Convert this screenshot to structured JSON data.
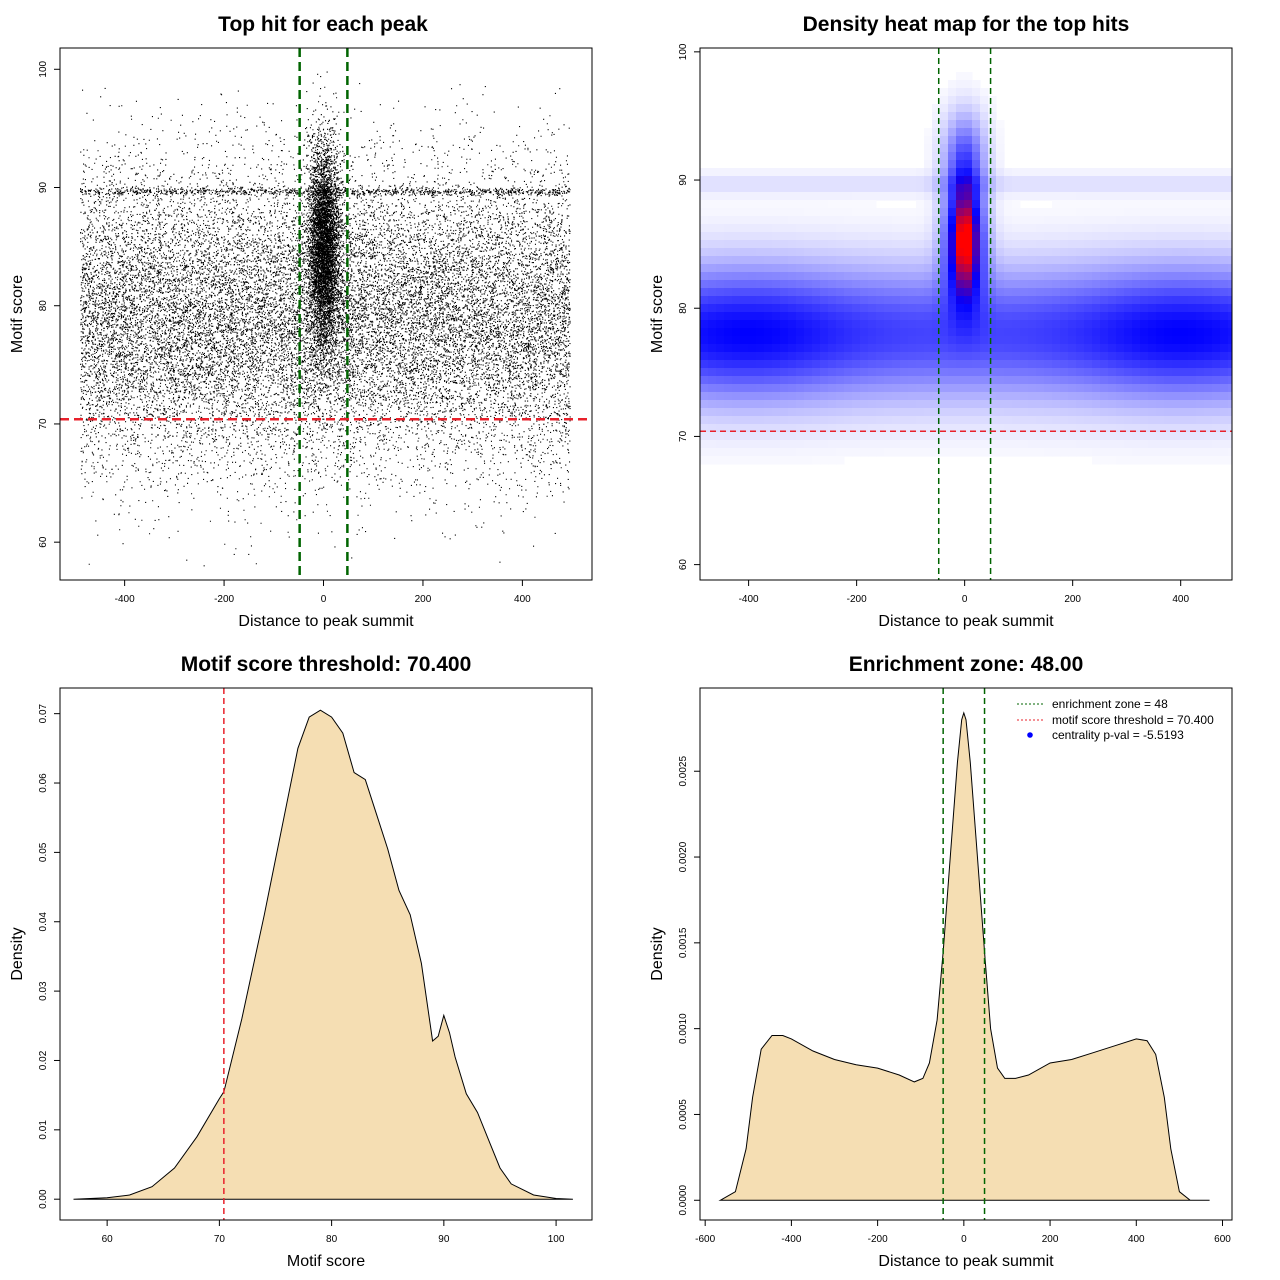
{
  "colors": {
    "points": "#000000",
    "enrichment_line": "#006400",
    "threshold_line": "#e8212b",
    "density_fill": "#f5deb3",
    "heat_low": "#4b4bff",
    "heat_high": "#ff0000",
    "legend_point": "#0000ff"
  },
  "chart_data": [
    {
      "id": "scatter",
      "type": "scatter",
      "title": "Top hit for each peak",
      "xlabel": "Distance to peak summit",
      "ylabel": "Motif score",
      "xlim": [
        -530,
        540
      ],
      "ylim": [
        56.8,
        101.8
      ],
      "xticks": [
        -400,
        -200,
        0,
        200,
        400
      ],
      "yticks": [
        60,
        70,
        80,
        90,
        100
      ],
      "x_range": [
        -490,
        495
      ],
      "n_background_points": 21000,
      "n_central_points": 5500,
      "central_x_range": [
        -48,
        48
      ],
      "score_mean": 79,
      "score_sd": 6.2,
      "central_score_mean": 85,
      "dense_band_score": 89.7,
      "enrichment_zone": [
        -48,
        48
      ],
      "threshold": 70.4
    },
    {
      "id": "heatmap",
      "type": "heatmap",
      "title": "Density heat map for the top hits",
      "xlabel": "Distance to peak summit",
      "ylabel": "Motif score",
      "xlim": [
        -490,
        495
      ],
      "ylim": [
        58.8,
        100.3
      ],
      "xticks": [
        -400,
        -200,
        0,
        200,
        400
      ],
      "yticks": [
        60,
        70,
        80,
        90,
        100
      ],
      "density_modes": [
        {
          "x": -400,
          "y": 78,
          "weight": 0.42
        },
        {
          "x": 400,
          "y": 78,
          "weight": 0.42
        },
        {
          "x": 0,
          "y": 85.5,
          "weight": 1.0
        }
      ],
      "enrichment_zone": [
        -48,
        48
      ],
      "threshold": 70.4
    },
    {
      "id": "score_density",
      "type": "area",
      "title": "Motif score threshold: 70.400",
      "xlabel": "Motif score",
      "ylabel": "Density",
      "xlim": [
        55.8,
        103.2
      ],
      "ylim": [
        -0.003,
        0.0737
      ],
      "xticks": [
        60,
        70,
        80,
        90,
        100
      ],
      "yticks": [
        0.0,
        0.01,
        0.02,
        0.03,
        0.04,
        0.05,
        0.06,
        0.07
      ],
      "ytick_labels": [
        "0.00",
        "0.01",
        "0.02",
        "0.03",
        "0.04",
        "0.05",
        "0.06",
        "0.07"
      ],
      "x": [
        57,
        60,
        62,
        64,
        66,
        68,
        70,
        70.4,
        72,
        74,
        76,
        77,
        78,
        79,
        80,
        81,
        82,
        83,
        84,
        85,
        86,
        87,
        88,
        89,
        89.5,
        90,
        90.5,
        91,
        92,
        93,
        94,
        95,
        96,
        98,
        100,
        101.5
      ],
      "y": [
        0.0,
        0.0002,
        0.0006,
        0.0018,
        0.0045,
        0.009,
        0.0145,
        0.0155,
        0.026,
        0.041,
        0.057,
        0.065,
        0.0695,
        0.0705,
        0.0695,
        0.0672,
        0.0615,
        0.0605,
        0.0555,
        0.0505,
        0.0445,
        0.041,
        0.034,
        0.0228,
        0.0235,
        0.0265,
        0.024,
        0.0205,
        0.0152,
        0.0125,
        0.0085,
        0.0045,
        0.0022,
        0.0006,
        0.0001,
        0.0
      ],
      "threshold": 70.4
    },
    {
      "id": "distance_density",
      "type": "area",
      "title": "Enrichment zone: 48.00",
      "xlabel": "Distance to peak summit",
      "ylabel": "Density",
      "xlim": [
        -612,
        622
      ],
      "ylim": [
        -0.000115,
        0.002985
      ],
      "xticks": [
        -600,
        -400,
        -200,
        0,
        200,
        400,
        600
      ],
      "yticks": [
        0.0,
        0.0005,
        0.001,
        0.0015,
        0.002,
        0.0025
      ],
      "ytick_labels": [
        "0.0000",
        "0.0005",
        "0.0010",
        "0.0015",
        "0.0020",
        "0.0025"
      ],
      "x": [
        -565,
        -530,
        -505,
        -490,
        -470,
        -445,
        -420,
        -400,
        -350,
        -300,
        -250,
        -200,
        -150,
        -115,
        -95,
        -80,
        -62,
        -48,
        -30,
        -15,
        -5,
        0,
        5,
        15,
        30,
        48,
        62,
        78,
        95,
        120,
        150,
        200,
        250,
        300,
        350,
        400,
        425,
        445,
        465,
        480,
        500,
        525,
        570
      ],
      "y": [
        0.0,
        5e-05,
        0.0003,
        0.0006,
        0.00088,
        0.00096,
        0.00096,
        0.00094,
        0.00087,
        0.00082,
        0.00079,
        0.00077,
        0.00073,
        0.00069,
        0.00071,
        0.0008,
        0.00105,
        0.00145,
        0.00205,
        0.00255,
        0.0028,
        0.00284,
        0.0028,
        0.00255,
        0.00205,
        0.00145,
        0.001,
        0.00077,
        0.00071,
        0.00071,
        0.00073,
        0.0008,
        0.00082,
        0.00086,
        0.0009,
        0.00094,
        0.00093,
        0.00085,
        0.0006,
        0.0003,
        5e-05,
        0.0,
        0.0
      ],
      "enrichment_zone": [
        -48,
        48
      ],
      "legend": [
        {
          "label": "enrichment zone = 48",
          "style": "dotted-green"
        },
        {
          "label": "motif score threshold = 70.400",
          "style": "dotted-red"
        },
        {
          "label": "centrality p-val = -5.5193",
          "style": "blue-point"
        }
      ]
    }
  ]
}
